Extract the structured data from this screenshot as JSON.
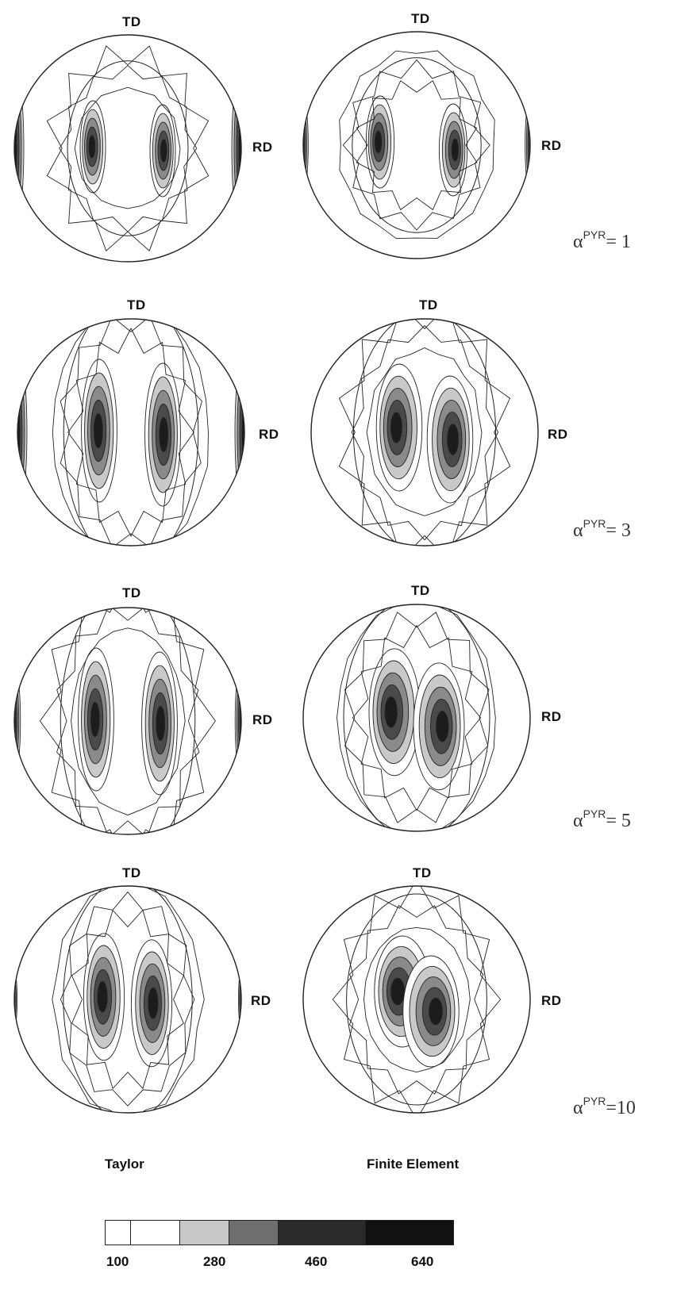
{
  "axis_labels": {
    "top": "TD",
    "right": "RD"
  },
  "columns": [
    "Taylor",
    "Finite Element"
  ],
  "rows": [
    {
      "alpha_symbol": "α",
      "alpha_sup": "PYR",
      "alpha_value": "= 1"
    },
    {
      "alpha_symbol": "α",
      "alpha_sup": "PYR",
      "alpha_value": "= 3"
    },
    {
      "alpha_symbol": "α",
      "alpha_sup": "PYR",
      "alpha_value": "= 5"
    },
    {
      "alpha_symbol": "α",
      "alpha_sup": "PYR",
      "alpha_value": "=10"
    }
  ],
  "legend": {
    "ticks": [
      "100",
      "280",
      "460",
      "640"
    ],
    "colors": [
      "#ffffff",
      "#ffffff",
      "#c8c8c8",
      "#6e6e6e",
      "#2a2a2a",
      "#111111"
    ]
  }
}
